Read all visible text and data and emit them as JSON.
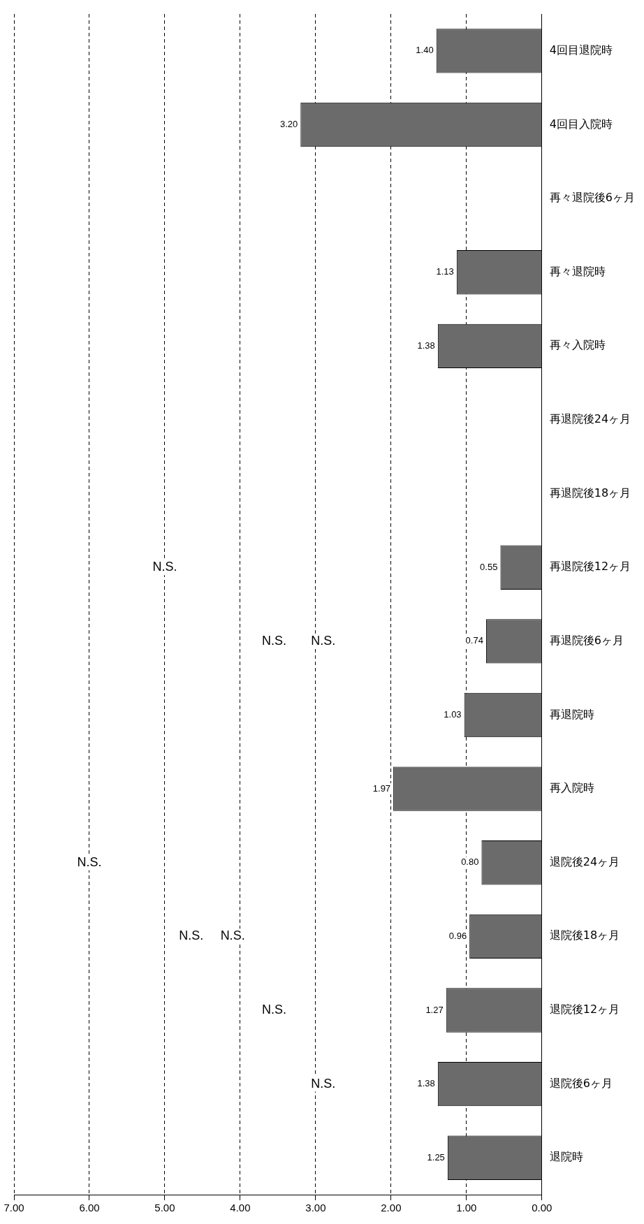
{
  "chart_data": {
    "type": "bar",
    "orientation": "horizontal",
    "categories": [
      "4回目退院時",
      "4回目入院時",
      "再々退院後6ヶ月",
      "再々退院時",
      "再々入院時",
      "再退院後24ヶ月",
      "再退院後18ヶ月",
      "再退院後12ヶ月",
      "再退院後6ヶ月",
      "再退院時",
      "再入院時",
      "退院後24ヶ月",
      "退院後18ヶ月",
      "退院後12ヶ月",
      "退院後6ヶ月",
      "退院時"
    ],
    "values": [
      1.4,
      3.2,
      null,
      1.13,
      1.38,
      null,
      null,
      0.55,
      0.74,
      1.03,
      1.97,
      0.8,
      0.96,
      1.27,
      1.38,
      1.25
    ],
    "value_labels": [
      "1.40",
      "3.20",
      null,
      "1.13",
      "1.38",
      null,
      null,
      "0.55",
      "0.74",
      "1.03",
      "1.97",
      "0.80",
      "0.96",
      "1.27",
      "1.38",
      "1.25"
    ],
    "color": "#6b6b6b",
    "xlim": [
      7,
      0
    ],
    "xticks": [
      {
        "value": 0,
        "label": "0.00"
      },
      {
        "value": 1,
        "label": "1.00"
      },
      {
        "value": 2,
        "label": "2.00"
      },
      {
        "value": 3,
        "label": "3.00"
      },
      {
        "value": 4,
        "label": "4.00"
      },
      {
        "value": 5,
        "label": "5.00"
      },
      {
        "value": 6,
        "label": "6.00"
      },
      {
        "value": 7,
        "label": "7.00"
      }
    ],
    "grid": "x",
    "line_style": "dashed",
    "legend": false,
    "annotations": [
      {
        "text": "N.S.",
        "x": 2.9,
        "y": "退院後6ヶ月"
      },
      {
        "text": "N.S.",
        "x": 3.55,
        "y": "退院後12ヶ月"
      },
      {
        "text": "N.S.",
        "x": 4.1,
        "y": "退院後18ヶ月"
      },
      {
        "text": "N.S.",
        "x": 4.65,
        "y": "退院後18ヶ月"
      },
      {
        "text": "N.S.",
        "x": 6.0,
        "y": "退院後24ヶ月"
      },
      {
        "text": "N.S.",
        "x": 5.0,
        "y": "再退院後12ヶ月"
      },
      {
        "text": "N.S.",
        "x": 3.55,
        "y": "再退院後6ヶ月"
      },
      {
        "text": "N.S.",
        "x": 2.9,
        "y": "再退院後6ヶ月"
      }
    ]
  }
}
